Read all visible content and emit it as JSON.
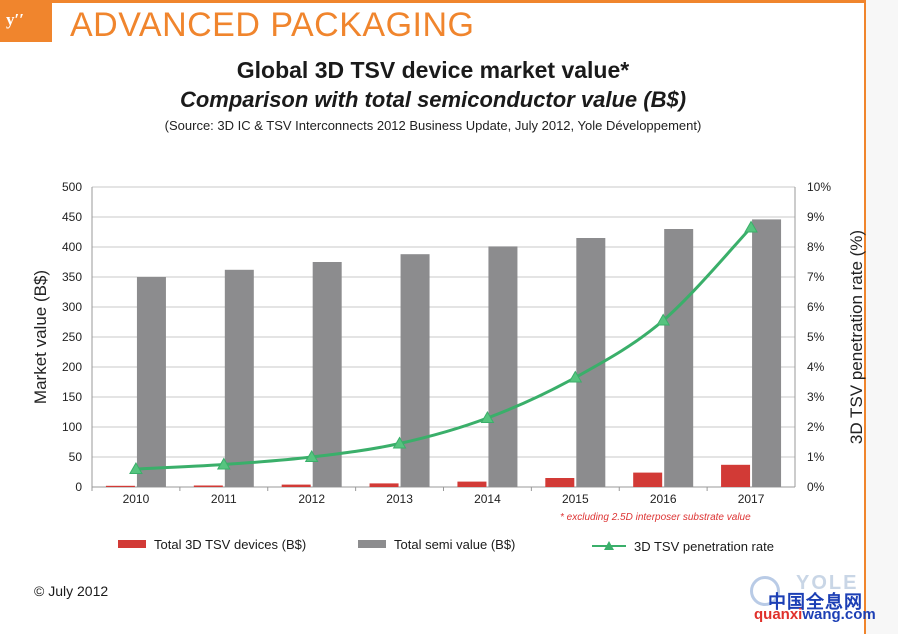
{
  "header": {
    "logo": "yʹʹ",
    "title": "ADVANCED PACKAGING"
  },
  "chart_data": {
    "type": "bar",
    "title": "Global 3D TSV device market value*",
    "subtitle": "Comparison with total semiconductor value (B$)",
    "source": "(Source: 3D IC & TSV Interconnects 2012 Business Update, July 2012, Yole Développement)",
    "categories": [
      "2010",
      "2011",
      "2012",
      "2013",
      "2014",
      "2015",
      "2016",
      "2017"
    ],
    "ylabel": "Market value (B$)",
    "ylim": [
      0,
      500
    ],
    "yticks": [
      "0",
      "50",
      "100",
      "150",
      "200",
      "250",
      "300",
      "350",
      "400",
      "450",
      "500"
    ],
    "y2label": "3D TSV penetration rate (%)",
    "y2lim": [
      0,
      10
    ],
    "y2ticks": [
      "0%",
      "1%",
      "2%",
      "3%",
      "4%",
      "5%",
      "6%",
      "7%",
      "8%",
      "9%",
      "10%"
    ],
    "grid": true,
    "series": [
      {
        "name": "Total 3D TSV devices (B$)",
        "type": "bar",
        "axis": "left",
        "color": "#d23a36",
        "values": [
          2,
          2.5,
          4,
          6,
          9,
          15,
          24,
          37
        ]
      },
      {
        "name": "Total semi value (B$)",
        "type": "bar",
        "axis": "left",
        "color": "#8c8c8e",
        "values": [
          350,
          362,
          375,
          388,
          401,
          415,
          430,
          446
        ]
      },
      {
        "name": "3D TSV penetration rate",
        "type": "line",
        "axis": "right",
        "color": "#3aaf6a",
        "marker": "triangle",
        "values": [
          0.6,
          0.75,
          1.0,
          1.45,
          2.3,
          3.65,
          5.55,
          8.65
        ]
      }
    ],
    "footnote": "* excluding 2.5D interposer substrate value",
    "legend_position": "bottom"
  },
  "footer": {
    "copyright": "© July 2012"
  },
  "watermark": {
    "yole": "YOLE",
    "cn": "中国全息网",
    "url_a": "quanxi",
    "url_b": "wang.com"
  }
}
